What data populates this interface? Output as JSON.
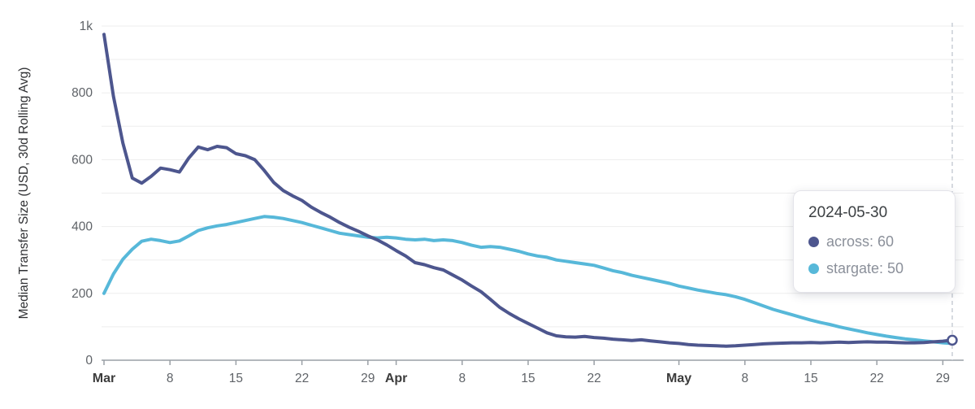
{
  "tooltip": {
    "title": "2024-05-30",
    "rows": [
      {
        "text": "across: 60",
        "color": "#4d568e"
      },
      {
        "text": "stargate: 50",
        "color": "#57b8d9"
      }
    ]
  },
  "chart_data": {
    "type": "line",
    "title": "",
    "xlabel": "",
    "ylabel": "Median Transfer Size (USD, 30d Rolling Avg)",
    "x_unit": "days since Mar 1 2024",
    "x_domain": [
      0,
      90
    ],
    "y_domain": [
      0,
      1000
    ],
    "y_grid_step": 100,
    "grid_on": true,
    "legend_position": "tooltip",
    "grid_color": "#ededed",
    "axis_color": "#9aa0a6",
    "cursor_line_color": "#c9ced6",
    "tick_label_color": "#5f6368",
    "month_label_color": "#3c3c3c",
    "y_ticks": [
      {
        "value": 0,
        "label": "0"
      },
      {
        "value": 200,
        "label": "200"
      },
      {
        "value": 400,
        "label": "400"
      },
      {
        "value": 600,
        "label": "600"
      },
      {
        "value": 800,
        "label": "800"
      },
      {
        "value": 1000,
        "label": "1k"
      }
    ],
    "x_ticks": [
      {
        "day": 0,
        "label": "Mar",
        "month": true
      },
      {
        "day": 7,
        "label": "8"
      },
      {
        "day": 14,
        "label": "15"
      },
      {
        "day": 21,
        "label": "22"
      },
      {
        "day": 28,
        "label": "29"
      },
      {
        "day": 31,
        "label": "Apr",
        "month": true
      },
      {
        "day": 38,
        "label": "8"
      },
      {
        "day": 45,
        "label": "15"
      },
      {
        "day": 52,
        "label": "22"
      },
      {
        "day": 61,
        "label": "May",
        "month": true
      },
      {
        "day": 68,
        "label": "8"
      },
      {
        "day": 75,
        "label": "15"
      },
      {
        "day": 82,
        "label": "22"
      },
      {
        "day": 89,
        "label": "29"
      }
    ],
    "cursor": {
      "day": 90,
      "date": "2024-05-30",
      "across": 60,
      "stargate": 50
    },
    "series": [
      {
        "name": "across",
        "color": "#4d568e",
        "points": [
          [
            0,
            975
          ],
          [
            1,
            790
          ],
          [
            2,
            650
          ],
          [
            3,
            545
          ],
          [
            4,
            530
          ],
          [
            5,
            550
          ],
          [
            6,
            575
          ],
          [
            7,
            570
          ],
          [
            8,
            563
          ],
          [
            9,
            605
          ],
          [
            10,
            638
          ],
          [
            11,
            630
          ],
          [
            12,
            640
          ],
          [
            13,
            636
          ],
          [
            14,
            618
          ],
          [
            15,
            612
          ],
          [
            16,
            600
          ],
          [
            17,
            568
          ],
          [
            18,
            532
          ],
          [
            19,
            508
          ],
          [
            20,
            492
          ],
          [
            21,
            478
          ],
          [
            22,
            458
          ],
          [
            23,
            442
          ],
          [
            24,
            428
          ],
          [
            25,
            412
          ],
          [
            26,
            398
          ],
          [
            27,
            386
          ],
          [
            28,
            372
          ],
          [
            29,
            360
          ],
          [
            30,
            345
          ],
          [
            31,
            328
          ],
          [
            32,
            312
          ],
          [
            33,
            292
          ],
          [
            34,
            286
          ],
          [
            35,
            277
          ],
          [
            36,
            270
          ],
          [
            37,
            255
          ],
          [
            38,
            240
          ],
          [
            39,
            222
          ],
          [
            40,
            205
          ],
          [
            41,
            182
          ],
          [
            42,
            158
          ],
          [
            43,
            140
          ],
          [
            44,
            124
          ],
          [
            45,
            110
          ],
          [
            46,
            96
          ],
          [
            47,
            82
          ],
          [
            48,
            73
          ],
          [
            49,
            70
          ],
          [
            50,
            69
          ],
          [
            51,
            71
          ],
          [
            52,
            68
          ],
          [
            53,
            66
          ],
          [
            54,
            63
          ],
          [
            55,
            61
          ],
          [
            56,
            59
          ],
          [
            57,
            61
          ],
          [
            58,
            58
          ],
          [
            59,
            55
          ],
          [
            60,
            52
          ],
          [
            61,
            50
          ],
          [
            62,
            47
          ],
          [
            63,
            45
          ],
          [
            64,
            44
          ],
          [
            65,
            43
          ],
          [
            66,
            42
          ],
          [
            67,
            43
          ],
          [
            68,
            45
          ],
          [
            69,
            47
          ],
          [
            70,
            49
          ],
          [
            71,
            50
          ],
          [
            72,
            51
          ],
          [
            73,
            52
          ],
          [
            74,
            52
          ],
          [
            75,
            53
          ],
          [
            76,
            52
          ],
          [
            77,
            53
          ],
          [
            78,
            54
          ],
          [
            79,
            53
          ],
          [
            80,
            54
          ],
          [
            81,
            55
          ],
          [
            82,
            54
          ],
          [
            83,
            54
          ],
          [
            84,
            53
          ],
          [
            85,
            52
          ],
          [
            86,
            52
          ],
          [
            87,
            53
          ],
          [
            88,
            55
          ],
          [
            89,
            57
          ],
          [
            90,
            60
          ]
        ]
      },
      {
        "name": "stargate",
        "color": "#57b8d9",
        "points": [
          [
            0,
            200
          ],
          [
            1,
            258
          ],
          [
            2,
            302
          ],
          [
            3,
            332
          ],
          [
            4,
            356
          ],
          [
            5,
            362
          ],
          [
            6,
            358
          ],
          [
            7,
            352
          ],
          [
            8,
            357
          ],
          [
            9,
            372
          ],
          [
            10,
            388
          ],
          [
            11,
            396
          ],
          [
            12,
            402
          ],
          [
            13,
            406
          ],
          [
            14,
            412
          ],
          [
            15,
            418
          ],
          [
            16,
            424
          ],
          [
            17,
            430
          ],
          [
            18,
            428
          ],
          [
            19,
            424
          ],
          [
            20,
            418
          ],
          [
            21,
            412
          ],
          [
            22,
            404
          ],
          [
            23,
            396
          ],
          [
            24,
            388
          ],
          [
            25,
            380
          ],
          [
            26,
            376
          ],
          [
            27,
            372
          ],
          [
            28,
            368
          ],
          [
            29,
            366
          ],
          [
            30,
            368
          ],
          [
            31,
            366
          ],
          [
            32,
            362
          ],
          [
            33,
            360
          ],
          [
            34,
            362
          ],
          [
            35,
            358
          ],
          [
            36,
            360
          ],
          [
            37,
            358
          ],
          [
            38,
            352
          ],
          [
            39,
            344
          ],
          [
            40,
            338
          ],
          [
            41,
            340
          ],
          [
            42,
            338
          ],
          [
            43,
            332
          ],
          [
            44,
            326
          ],
          [
            45,
            318
          ],
          [
            46,
            312
          ],
          [
            47,
            308
          ],
          [
            48,
            300
          ],
          [
            49,
            296
          ],
          [
            50,
            292
          ],
          [
            51,
            288
          ],
          [
            52,
            284
          ],
          [
            53,
            276
          ],
          [
            54,
            268
          ],
          [
            55,
            262
          ],
          [
            56,
            254
          ],
          [
            57,
            248
          ],
          [
            58,
            242
          ],
          [
            59,
            236
          ],
          [
            60,
            230
          ],
          [
            61,
            222
          ],
          [
            62,
            216
          ],
          [
            63,
            210
          ],
          [
            64,
            205
          ],
          [
            65,
            200
          ],
          [
            66,
            196
          ],
          [
            67,
            190
          ],
          [
            68,
            182
          ],
          [
            69,
            172
          ],
          [
            70,
            162
          ],
          [
            71,
            152
          ],
          [
            72,
            144
          ],
          [
            73,
            136
          ],
          [
            74,
            128
          ],
          [
            75,
            120
          ],
          [
            76,
            113
          ],
          [
            77,
            107
          ],
          [
            78,
            100
          ],
          [
            79,
            94
          ],
          [
            80,
            88
          ],
          [
            81,
            82
          ],
          [
            82,
            77
          ],
          [
            83,
            72
          ],
          [
            84,
            68
          ],
          [
            85,
            64
          ],
          [
            86,
            61
          ],
          [
            87,
            58
          ],
          [
            88,
            55
          ],
          [
            89,
            52
          ],
          [
            90,
            50
          ]
        ]
      }
    ]
  }
}
